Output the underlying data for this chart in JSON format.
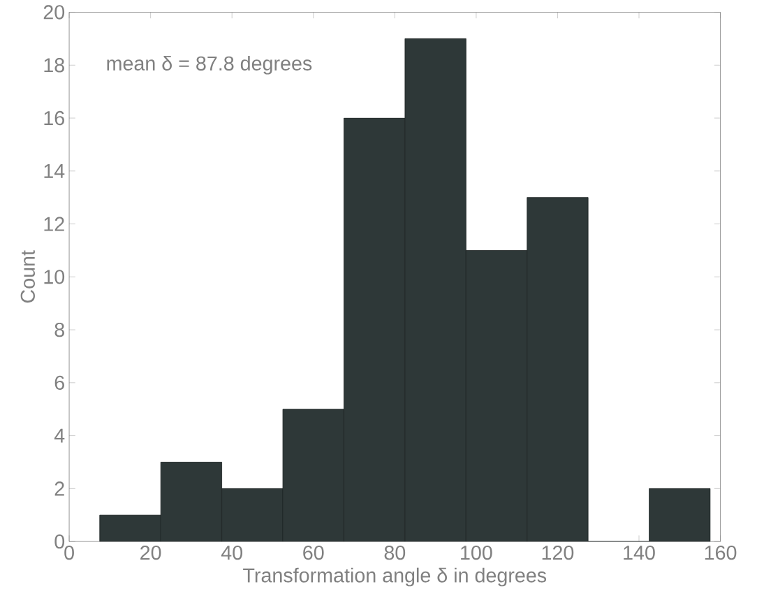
{
  "chart_data": {
    "type": "histogram",
    "bins": [
      7.5,
      22.5,
      37.5,
      52.5,
      67.5,
      82.5,
      97.5,
      112.5,
      127.5,
      142.5,
      157.5
    ],
    "values": [
      1,
      3,
      2,
      5,
      16,
      19,
      11,
      13,
      0,
      2
    ],
    "color": "#2e3838",
    "xlabel": "Transformation angle δ in degrees",
    "ylabel": "Count",
    "annotations": [
      "mean δ = 87.8 degrees"
    ],
    "xlim": [
      0,
      160
    ],
    "ylim": [
      0,
      20
    ],
    "xticks": [
      0,
      20,
      40,
      60,
      80,
      100,
      120,
      140,
      160
    ],
    "yticks": [
      0,
      2,
      4,
      6,
      8,
      10,
      12,
      14,
      16,
      18,
      20
    ],
    "grid": false
  }
}
